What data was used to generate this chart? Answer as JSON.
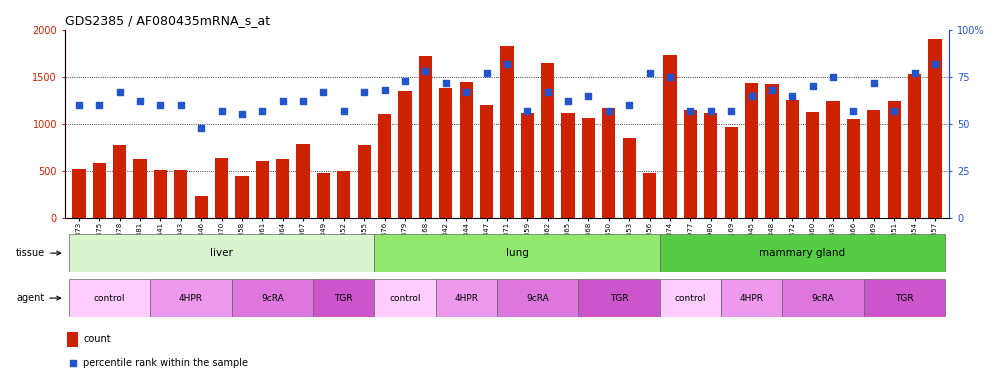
{
  "title": "GDS2385 / AF080435mRNA_s_at",
  "samples": [
    "GSM89873",
    "GSM89875",
    "GSM89878",
    "GSM89881",
    "GSM89841",
    "GSM89843",
    "GSM89846",
    "GSM89870",
    "GSM89858",
    "GSM89861",
    "GSM89864",
    "GSM89867",
    "GSM89849",
    "GSM89852",
    "GSM89855",
    "GSM89876",
    "GSM89879",
    "GSM90168",
    "GSM89842",
    "GSM89844",
    "GSM89847",
    "GSM89871",
    "GSM89859",
    "GSM89862",
    "GSM89865",
    "GSM89868",
    "GSM89850",
    "GSM89853",
    "GSM89856",
    "GSM89874",
    "GSM89977",
    "GSM89980",
    "GSM90169",
    "GSM89945",
    "GSM89848",
    "GSM89872",
    "GSM89860",
    "GSM89863",
    "GSM89866",
    "GSM89869",
    "GSM89851",
    "GSM89854",
    "GSM89857"
  ],
  "counts": [
    520,
    580,
    775,
    620,
    510,
    510,
    225,
    635,
    440,
    600,
    620,
    785,
    480,
    500,
    775,
    1100,
    1350,
    1720,
    1380,
    1450,
    1200,
    1830,
    1120,
    1650,
    1120,
    1060,
    1170,
    850,
    480,
    1730,
    1150,
    1120,
    970,
    1430,
    1420,
    1250,
    1130,
    1240,
    1050,
    1150,
    1240,
    1530,
    1900
  ],
  "percentiles_pct": [
    60,
    60,
    67,
    62,
    60,
    60,
    48,
    57,
    55,
    57,
    62,
    62,
    67,
    57,
    67,
    68,
    73,
    78,
    72,
    67,
    77,
    82,
    57,
    67,
    62,
    65,
    57,
    60,
    77,
    75,
    57,
    57,
    57,
    65,
    68,
    65,
    70,
    75,
    57,
    72,
    57,
    77,
    82
  ],
  "tissue_groups": [
    {
      "label": "liver",
      "start": 0,
      "end": 14,
      "color": "#d8f5d0"
    },
    {
      "label": "lung",
      "start": 15,
      "end": 28,
      "color": "#90e870"
    },
    {
      "label": "mammary gland",
      "start": 29,
      "end": 42,
      "color": "#55cc44"
    }
  ],
  "agent_groups": [
    {
      "label": "control",
      "start": 0,
      "end": 3,
      "color": "#ffccff"
    },
    {
      "label": "4HPR",
      "start": 4,
      "end": 7,
      "color": "#ee99ee"
    },
    {
      "label": "9cRA",
      "start": 8,
      "end": 11,
      "color": "#dd77dd"
    },
    {
      "label": "TGR",
      "start": 12,
      "end": 14,
      "color": "#cc55cc"
    },
    {
      "label": "control",
      "start": 15,
      "end": 17,
      "color": "#ffccff"
    },
    {
      "label": "4HPR",
      "start": 18,
      "end": 20,
      "color": "#ee99ee"
    },
    {
      "label": "9cRA",
      "start": 21,
      "end": 24,
      "color": "#dd77dd"
    },
    {
      "label": "TGR",
      "start": 25,
      "end": 28,
      "color": "#cc55cc"
    },
    {
      "label": "control",
      "start": 29,
      "end": 31,
      "color": "#ffccff"
    },
    {
      "label": "4HPR",
      "start": 32,
      "end": 34,
      "color": "#ee99ee"
    },
    {
      "label": "9cRA",
      "start": 35,
      "end": 38,
      "color": "#dd77dd"
    },
    {
      "label": "TGR",
      "start": 39,
      "end": 42,
      "color": "#cc55cc"
    }
  ],
  "bar_color": "#cc2200",
  "dot_color": "#2255cc",
  "ylim_left": [
    0,
    2000
  ],
  "ylim_right": [
    0,
    100
  ],
  "yticks_left": [
    0,
    500,
    1000,
    1500,
    2000
  ],
  "yticks_right": [
    0,
    25,
    50,
    75,
    100
  ],
  "bg_color": "#ffffff"
}
